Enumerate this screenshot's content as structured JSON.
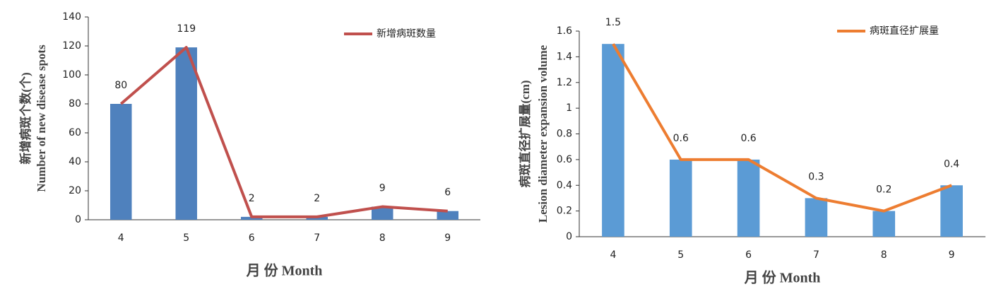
{
  "chart_data": [
    {
      "type": "bar_line",
      "categories": [
        "4",
        "5",
        "6",
        "7",
        "8",
        "9"
      ],
      "series": [
        {
          "name": "新增病斑数量",
          "bar_color": "#4f81bd",
          "color": "#c0504d",
          "values": [
            80,
            119,
            2,
            2,
            9,
            6
          ]
        }
      ],
      "ylim": [
        0,
        140
      ],
      "yticks": [
        0,
        20,
        40,
        60,
        80,
        100,
        120,
        140
      ],
      "y_label": [
        "新增病斑个数(个)",
        "Number of new disease spots"
      ],
      "x_label": "月 份 Month",
      "legend": "upper right"
    },
    {
      "type": "bar_line",
      "categories": [
        "4",
        "5",
        "6",
        "7",
        "8",
        "9"
      ],
      "series": [
        {
          "name": "病斑直径扩展量",
          "bar_color": "#5b9bd5",
          "color": "#ed7d31",
          "values": [
            1.5,
            0.6,
            0.6,
            0.3,
            0.2,
            0.4
          ]
        }
      ],
      "ylim": [
        0,
        1.6
      ],
      "yticks": [
        0,
        0.2,
        0.4,
        0.6,
        0.8,
        1,
        1.2,
        1.4,
        1.6
      ],
      "y_label": [
        "病斑直径扩展量(cm)",
        "Lesion diameter expansion volume"
      ],
      "x_label": "月 份 Month",
      "legend": "upper right"
    }
  ]
}
